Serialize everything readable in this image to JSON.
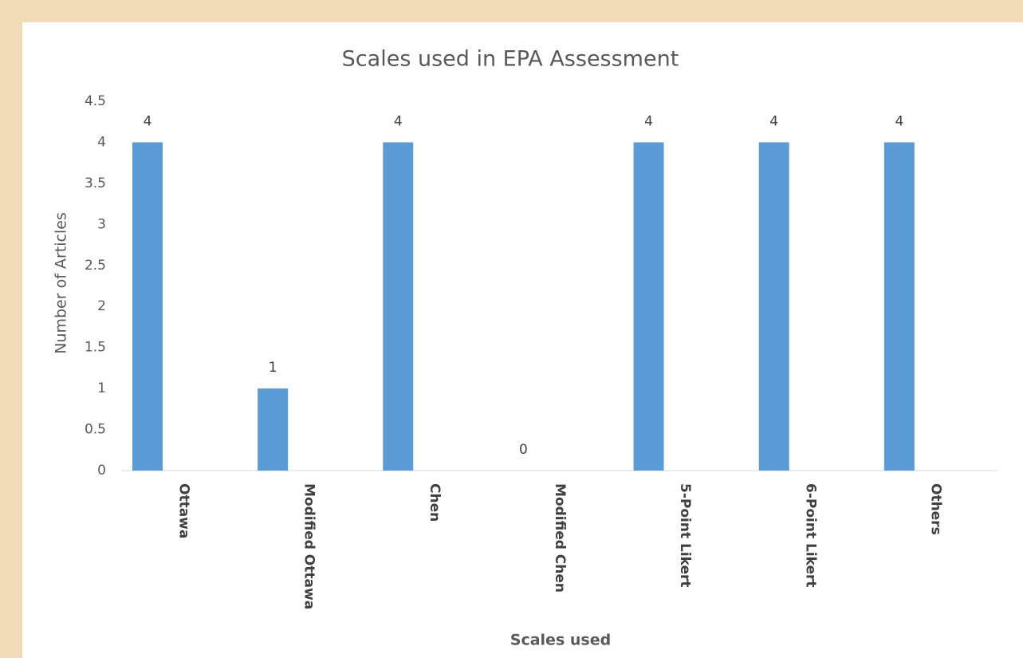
{
  "chart_data": {
    "type": "bar",
    "title": "Scales used in EPA Assessment",
    "xlabel": "Scales used",
    "ylabel": "Number of Articles",
    "categories": [
      "Ottawa",
      "Modified Ottawa",
      "Chen",
      "Modified Chen",
      "5-Point Likert",
      "6-Point Likert",
      "Others"
    ],
    "values": [
      4,
      1,
      4,
      0,
      4,
      4,
      4
    ],
    "color": "#5b9bd5",
    "ylim": [
      0,
      4.5
    ],
    "yticks": [
      0,
      0.5,
      1,
      1.5,
      2,
      2.5,
      3,
      3.5,
      4,
      4.5
    ],
    "grid": false
  }
}
